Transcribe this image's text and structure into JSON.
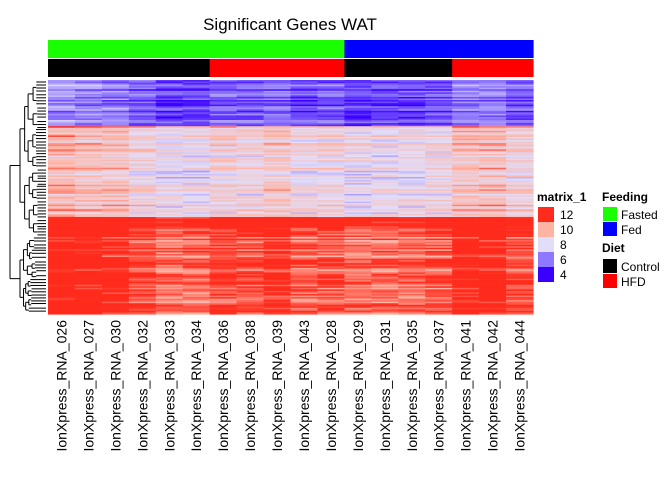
{
  "chart_data": {
    "type": "heatmap",
    "title": "Significant Genes WAT",
    "columns": [
      "IonXpress_RNA_026",
      "IonXpress_RNA_027",
      "IonXpress_RNA_030",
      "IonXpress_RNA_032",
      "IonXpress_RNA_033",
      "IonXpress_RNA_034",
      "IonXpress_RNA_036",
      "IonXpress_RNA_038",
      "IonXpress_RNA_039",
      "IonXpress_RNA_043",
      "IonXpress_RNA_028",
      "IonXpress_RNA_029",
      "IonXpress_RNA_031",
      "IonXpress_RNA_035",
      "IonXpress_RNA_037",
      "IonXpress_RNA_041",
      "IonXpress_RNA_042",
      "IonXpress_RNA_044"
    ],
    "annotations": {
      "feeding": [
        "Fasted",
        "Fasted",
        "Fasted",
        "Fasted",
        "Fasted",
        "Fasted",
        "Fasted",
        "Fasted",
        "Fasted",
        "Fasted",
        "Fasted",
        "Fed",
        "Fed",
        "Fed",
        "Fed",
        "Fed",
        "Fed",
        "Fed"
      ],
      "diet": [
        "Control",
        "Control",
        "Control",
        "Control",
        "Control",
        "Control",
        "HFD",
        "HFD",
        "HFD",
        "HFD",
        "HFD",
        "Control",
        "Control",
        "Control",
        "Control",
        "HFD",
        "HFD",
        "HFD"
      ]
    },
    "row_blocks": [
      {
        "rows": 30,
        "base": 5.2
      },
      {
        "rows": 4,
        "base": 9.4
      },
      {
        "rows": 55,
        "base": 8.6
      },
      {
        "rows": 8,
        "base": 12.4
      },
      {
        "rows": 55,
        "base": 11.3
      }
    ],
    "column_offsets": [
      1.8,
      1.5,
      1.3,
      0.3,
      -0.6,
      -0.5,
      0.4,
      0.2,
      0.8,
      -0.2,
      0.0,
      -0.5,
      -0.3,
      -0.4,
      -0.1,
      1.3,
      1.4,
      0.2
    ],
    "color_scale": {
      "min": 4,
      "max": 12,
      "stops": [
        {
          "value": 4,
          "color": "#3a00ff"
        },
        {
          "value": 6,
          "color": "#8f78ff"
        },
        {
          "value": 8,
          "color": "#e2defa"
        },
        {
          "value": 10,
          "color": "#ffb3a3"
        },
        {
          "value": 12,
          "color": "#ff2b1c"
        }
      ]
    },
    "legend_heat": {
      "title": "matrix_1",
      "ticks": [
        "12",
        "10",
        "8",
        "6",
        "4"
      ]
    },
    "legend_feeding": {
      "title": "Feeding",
      "items": [
        {
          "label": "Fasted",
          "color": "#19ff00"
        },
        {
          "label": "Fed",
          "color": "#0000ff"
        }
      ]
    },
    "legend_diet": {
      "title": "Diet",
      "items": [
        {
          "label": "Control",
          "color": "#000000"
        },
        {
          "label": "HFD",
          "color": "#ff0000"
        }
      ]
    }
  }
}
